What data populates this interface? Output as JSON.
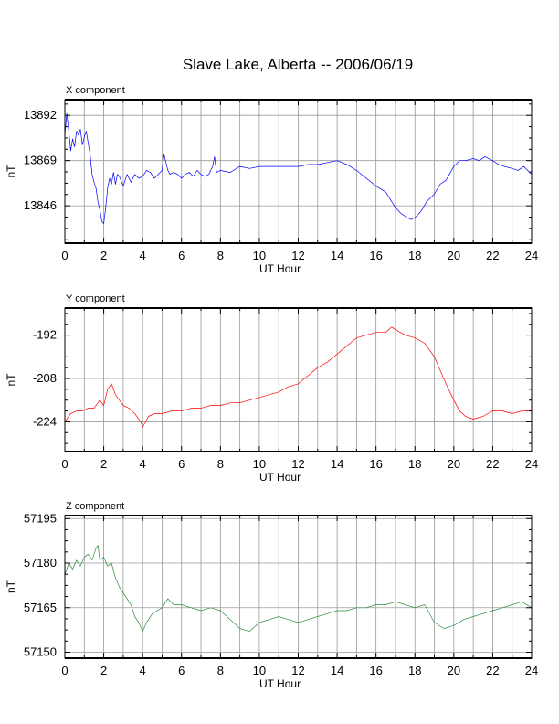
{
  "title": "Slave Lake, Alberta -- 2006/06/19",
  "chart_data": [
    {
      "type": "line",
      "title": "X component",
      "xlabel": "UT Hour",
      "ylabel": "nT",
      "xlim": [
        0,
        24
      ],
      "ylim": [
        13827,
        13900
      ],
      "xticks": [
        0,
        2,
        4,
        6,
        8,
        10,
        12,
        14,
        16,
        18,
        20,
        22,
        24
      ],
      "xtick_labels": [
        "0",
        "2",
        "4",
        "6",
        "8",
        "10",
        "12",
        "14",
        "16",
        "18",
        "20",
        "22",
        "24"
      ],
      "yticks": [
        13846,
        13869,
        13892
      ],
      "ytick_labels": [
        "13846",
        "13869",
        "13892"
      ],
      "grid": true,
      "color": "#0000ff",
      "series": [
        {
          "x": [
            0,
            0.1,
            0.2,
            0.3,
            0.4,
            0.5,
            0.6,
            0.7,
            0.8,
            0.9,
            1.0,
            1.1,
            1.2,
            1.3,
            1.4,
            1.5,
            1.6,
            1.7,
            1.8,
            1.9,
            2.0,
            2.1,
            2.2,
            2.3,
            2.4,
            2.5,
            2.6,
            2.7,
            2.8,
            3.0,
            3.2,
            3.4,
            3.6,
            3.8,
            4.0,
            4.2,
            4.4,
            4.6,
            4.8,
            5.0,
            5.1,
            5.2,
            5.3,
            5.4,
            5.6,
            5.8,
            6.0,
            6.2,
            6.4,
            6.6,
            6.8,
            7.0,
            7.2,
            7.4,
            7.6,
            7.7,
            7.8,
            8.0,
            8.5,
            9.0,
            9.5,
            10.0,
            10.5,
            11.0,
            11.5,
            12.0,
            12.5,
            13.0,
            13.5,
            14.0,
            14.5,
            15.0,
            15.5,
            16.0,
            16.5,
            17.0,
            17.3,
            17.6,
            17.8,
            18.0,
            18.3,
            18.6,
            19.0,
            19.3,
            19.6,
            20.0,
            20.3,
            20.6,
            21.0,
            21.3,
            21.6,
            22.0,
            22.3,
            22.6,
            23.0,
            23.3,
            23.6,
            24.0
          ],
          "values": [
            13882,
            13893,
            13884,
            13874,
            13880,
            13876,
            13884,
            13882,
            13885,
            13877,
            13881,
            13884,
            13878,
            13872,
            13862,
            13858,
            13855,
            13848,
            13844,
            13838,
            13837,
            13845,
            13855,
            13860,
            13857,
            13863,
            13857,
            13862,
            13861,
            13856,
            13862,
            13858,
            13862,
            13860,
            13861,
            13864,
            13863,
            13860,
            13862,
            13864,
            13872,
            13868,
            13864,
            13862,
            13863,
            13862,
            13860,
            13862,
            13863,
            13861,
            13864,
            13862,
            13861,
            13862,
            13866,
            13871,
            13863,
            13864,
            13863,
            13866,
            13865,
            13866,
            13866,
            13866,
            13866,
            13866,
            13867,
            13867,
            13868,
            13869,
            13867,
            13864,
            13860,
            13856,
            13853,
            13845,
            13842,
            13840,
            13839,
            13840,
            13843,
            13848,
            13852,
            13857,
            13859,
            13866,
            13869,
            13869,
            13870,
            13869,
            13871,
            13869,
            13867,
            13866,
            13865,
            13864,
            13866,
            13862
          ]
        }
      ]
    },
    {
      "type": "line",
      "title": "Y component",
      "xlabel": "UT Hour",
      "ylabel": "nT",
      "xlim": [
        0,
        24
      ],
      "ylim": [
        -235,
        -182
      ],
      "xticks": [
        0,
        2,
        4,
        6,
        8,
        10,
        12,
        14,
        16,
        18,
        20,
        22,
        24
      ],
      "xtick_labels": [
        "0",
        "2",
        "4",
        "6",
        "8",
        "10",
        "12",
        "14",
        "16",
        "18",
        "20",
        "22",
        "24"
      ],
      "yticks": [
        -224,
        -208,
        -192
      ],
      "ytick_labels": [
        "-224",
        "-208",
        "-192"
      ],
      "grid": true,
      "color": "#ff0000",
      "series": [
        {
          "x": [
            0,
            0.3,
            0.6,
            0.9,
            1.2,
            1.5,
            1.8,
            2.0,
            2.2,
            2.4,
            2.6,
            2.8,
            3.0,
            3.3,
            3.6,
            3.9,
            4.0,
            4.3,
            4.6,
            5.0,
            5.5,
            6.0,
            6.5,
            7.0,
            7.5,
            8.0,
            8.5,
            9.0,
            9.5,
            10.0,
            10.5,
            11.0,
            11.5,
            12.0,
            12.5,
            13.0,
            13.5,
            14.0,
            14.5,
            15.0,
            15.5,
            16.0,
            16.5,
            16.8,
            17.0,
            17.5,
            18.0,
            18.5,
            19.0,
            19.3,
            19.6,
            20.0,
            20.3,
            20.6,
            21.0,
            21.5,
            22.0,
            22.5,
            23.0,
            23.5,
            24.0
          ],
          "values": [
            -224,
            -221,
            -220,
            -220,
            -219,
            -219,
            -216,
            -218,
            -212,
            -210,
            -214,
            -216,
            -218,
            -219,
            -221,
            -224,
            -226,
            -222,
            -221,
            -221,
            -220,
            -220,
            -219,
            -219,
            -218,
            -218,
            -217,
            -217,
            -216,
            -215,
            -214,
            -213,
            -211,
            -210,
            -207,
            -204,
            -202,
            -199,
            -196,
            -193,
            -192,
            -191,
            -191,
            -189,
            -190,
            -192,
            -193,
            -195,
            -200,
            -205,
            -210,
            -216,
            -220,
            -222,
            -223,
            -222,
            -220,
            -220,
            -221,
            -220,
            -220
          ]
        }
      ]
    },
    {
      "type": "line",
      "title": "Z component",
      "xlabel": "UT Hour",
      "ylabel": "nT",
      "xlim": [
        0,
        24
      ],
      "ylim": [
        57148,
        57196
      ],
      "xticks": [
        0,
        2,
        4,
        6,
        8,
        10,
        12,
        14,
        16,
        18,
        20,
        22,
        24
      ],
      "xtick_labels": [
        "0",
        "2",
        "4",
        "6",
        "8",
        "10",
        "12",
        "14",
        "16",
        "18",
        "20",
        "22",
        "24"
      ],
      "yticks": [
        57150,
        57165,
        57180,
        57195
      ],
      "ytick_labels": [
        "57150",
        "57165",
        "57180",
        "57195"
      ],
      "grid": true,
      "color": "#2e8b3e",
      "series": [
        {
          "x": [
            0,
            0.2,
            0.4,
            0.6,
            0.8,
            1.0,
            1.2,
            1.4,
            1.6,
            1.7,
            1.8,
            2.0,
            2.2,
            2.4,
            2.6,
            2.8,
            3.0,
            3.2,
            3.4,
            3.6,
            3.8,
            4.0,
            4.2,
            4.5,
            5.0,
            5.3,
            5.6,
            6.0,
            6.5,
            7.0,
            7.5,
            8.0,
            8.5,
            9.0,
            9.5,
            10.0,
            10.5,
            11.0,
            11.5,
            12.0,
            12.5,
            13.0,
            13.5,
            14.0,
            14.5,
            15.0,
            15.5,
            16.0,
            16.5,
            17.0,
            17.5,
            18.0,
            18.5,
            19.0,
            19.5,
            20.0,
            20.5,
            21.0,
            21.5,
            22.0,
            22.5,
            23.0,
            23.5,
            24.0
          ],
          "values": [
            57176,
            57180,
            57178,
            57181,
            57179,
            57182,
            57183,
            57181,
            57185,
            57186,
            57181,
            57182,
            57179,
            57180,
            57175,
            57172,
            57170,
            57168,
            57166,
            57162,
            57160,
            57157,
            57160,
            57163,
            57165,
            57168,
            57166,
            57166,
            57165,
            57164,
            57165,
            57164,
            57161,
            57158,
            57157,
            57160,
            57161,
            57162,
            57161,
            57160,
            57161,
            57162,
            57163,
            57164,
            57164,
            57165,
            57165,
            57166,
            57166,
            57167,
            57166,
            57165,
            57166,
            57160,
            57158,
            57159,
            57161,
            57162,
            57163,
            57164,
            57165,
            57166,
            57167,
            57165
          ]
        }
      ]
    }
  ]
}
